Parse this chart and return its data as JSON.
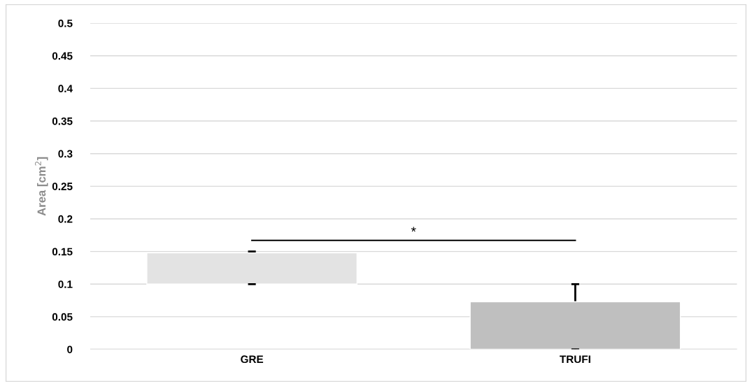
{
  "chart_data": {
    "type": "bar",
    "categories": [
      "GRE",
      "TRUFI"
    ],
    "base": [
      0.1,
      0
    ],
    "values": [
      0.048,
      0.073
    ],
    "colors": [
      "#e3e3e3",
      "#bfbfbf"
    ],
    "errors": [
      [
        0.1,
        0.15
      ],
      [
        0,
        0.1
      ]
    ],
    "ylabel": "Area [cm$^{2}$]",
    "ylim": [
      0,
      0.5
    ],
    "yticks": [
      0,
      0.05,
      0.1,
      0.15,
      0.2,
      0.25,
      0.3,
      0.35,
      0.4,
      0.45,
      0.5
    ],
    "grid": "y",
    "annotations": [
      "*"
    ]
  }
}
